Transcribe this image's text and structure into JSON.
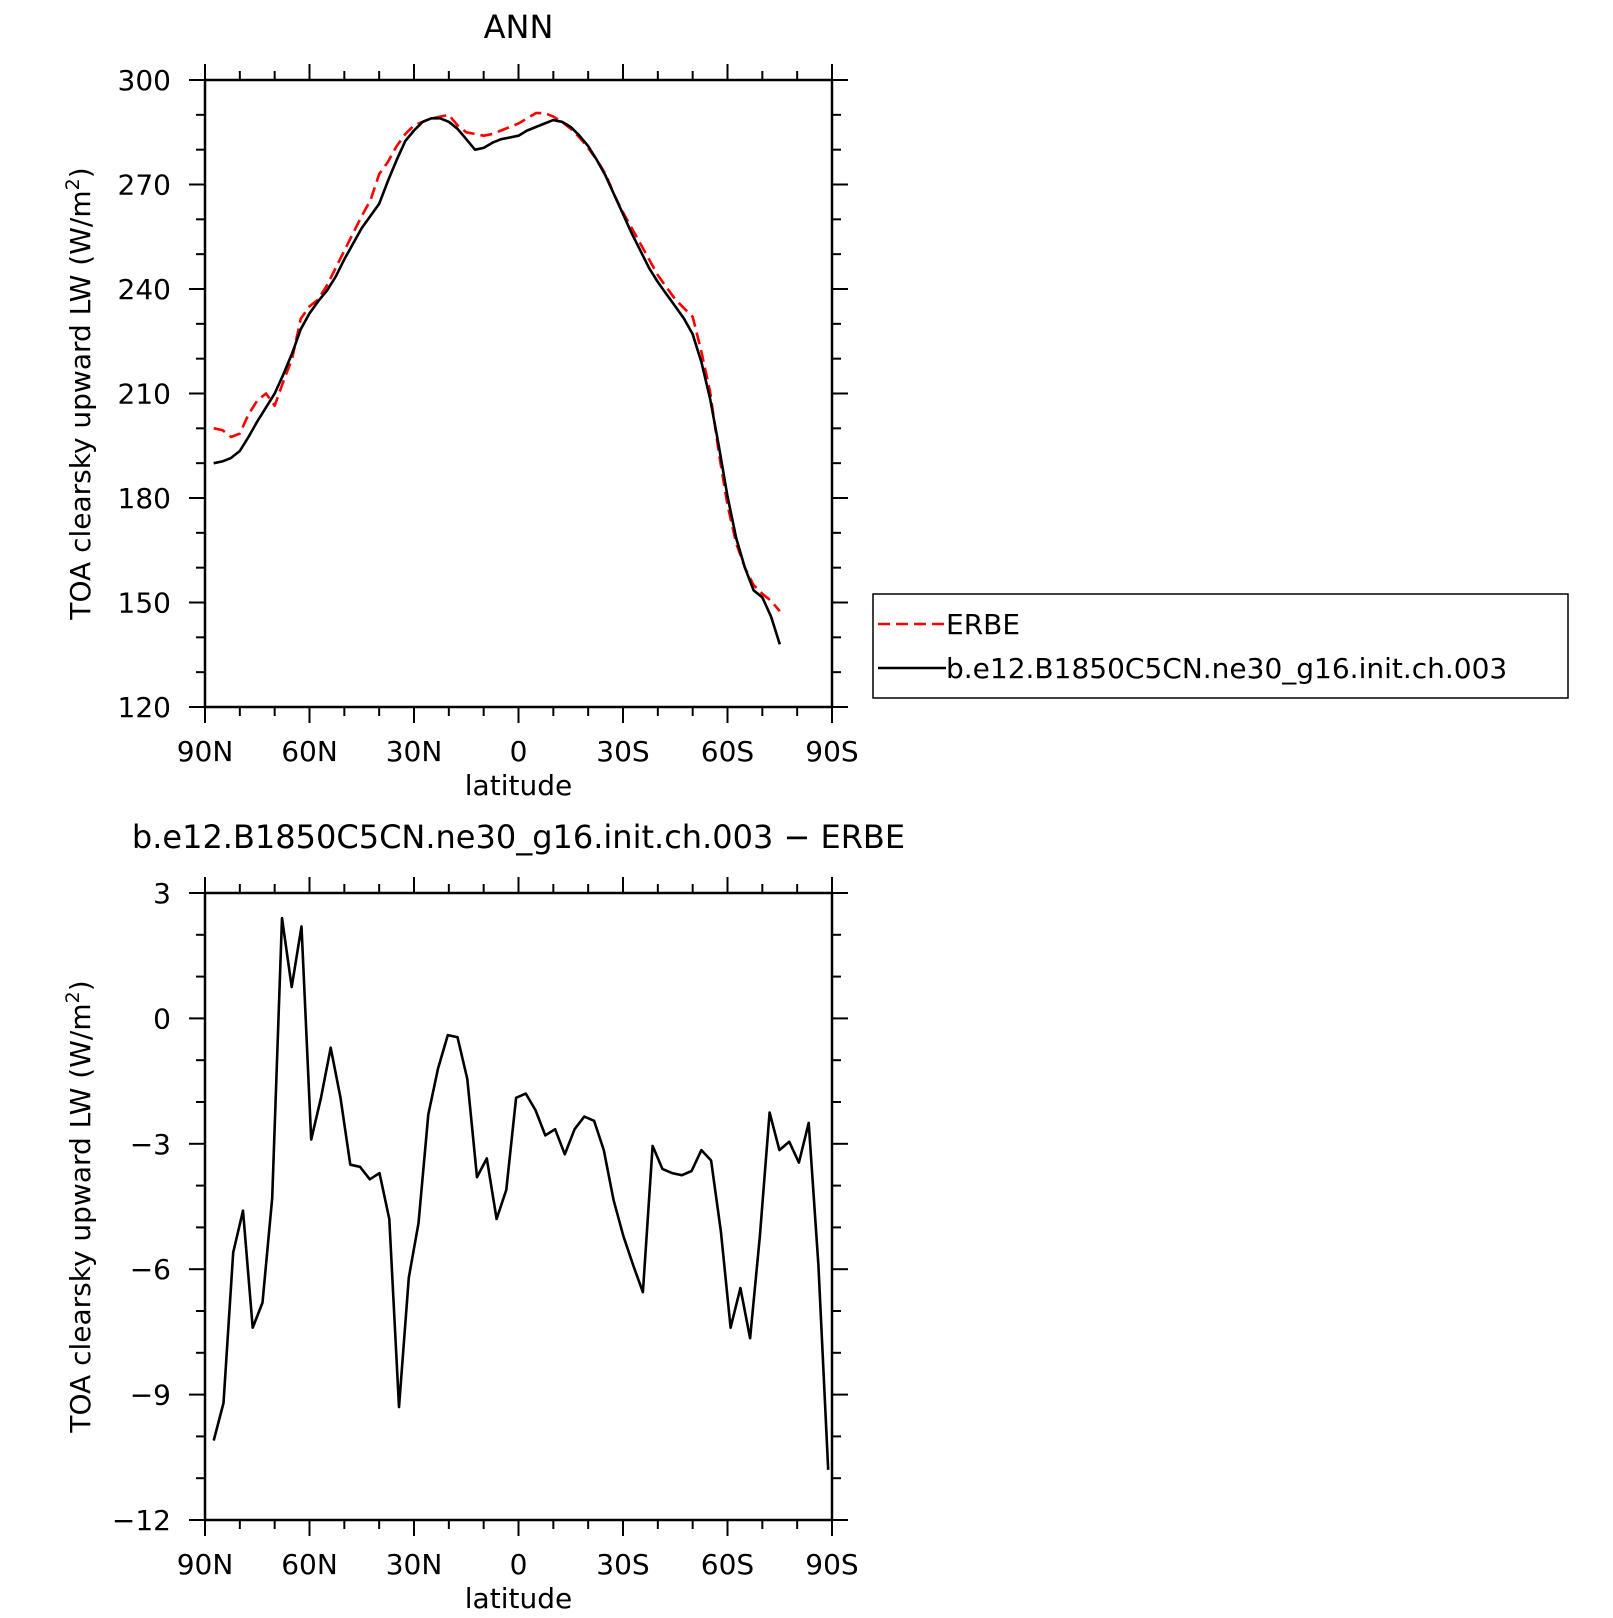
{
  "chart_data": [
    {
      "type": "line",
      "title": "ANN",
      "xlabel": "latitude",
      "ylabel_main": "TOA clearsky upward LW (W/m",
      "ylabel_sup": "2",
      "ylabel_close": ")",
      "xlim": [
        90,
        -90
      ],
      "ylim": [
        120,
        300
      ],
      "x_ticks": [
        {
          "value": 90,
          "label": "90N"
        },
        {
          "value": 60,
          "label": "60N"
        },
        {
          "value": 30,
          "label": "30N"
        },
        {
          "value": 0,
          "label": "0"
        },
        {
          "value": -30,
          "label": "30S"
        },
        {
          "value": -60,
          "label": "60S"
        },
        {
          "value": -90,
          "label": "90S"
        }
      ],
      "y_ticks": [
        {
          "value": 120,
          "label": "120"
        },
        {
          "value": 150,
          "label": "150"
        },
        {
          "value": 180,
          "label": "180"
        },
        {
          "value": 210,
          "label": "210"
        },
        {
          "value": 240,
          "label": "240"
        },
        {
          "value": 270,
          "label": "270"
        },
        {
          "value": 300,
          "label": "300"
        }
      ],
      "legend_position": "right",
      "series": [
        {
          "name": "ERBE",
          "color": "#ff0000",
          "dash": "dashed",
          "points": [
            [
              87.5,
              200
            ],
            [
              85,
              199.5
            ],
            [
              82.5,
              197.5
            ],
            [
              80,
              198.5
            ],
            [
              77.5,
              204
            ],
            [
              75,
              208
            ],
            [
              72.5,
              210
            ],
            [
              70,
              206.5
            ],
            [
              67.5,
              213.5
            ],
            [
              65,
              220
            ],
            [
              62.5,
              231.5
            ],
            [
              60,
              235
            ],
            [
              57.5,
              237
            ],
            [
              55,
              241
            ],
            [
              52.5,
              246
            ],
            [
              50,
              251
            ],
            [
              47.5,
              256
            ],
            [
              45,
              261
            ],
            [
              42.5,
              265.5
            ],
            [
              40,
              273
            ],
            [
              37.5,
              276.5
            ],
            [
              35,
              281
            ],
            [
              32.5,
              284.5
            ],
            [
              30,
              287
            ],
            [
              27.5,
              288
            ],
            [
              25,
              289
            ],
            [
              22.5,
              289.5
            ],
            [
              20,
              290
            ],
            [
              17.5,
              287
            ],
            [
              15,
              285
            ],
            [
              12.5,
              284.5
            ],
            [
              10,
              284
            ],
            [
              7.5,
              284.5
            ],
            [
              5,
              285.5
            ],
            [
              2.5,
              286.5
            ],
            [
              0,
              287.5
            ],
            [
              -2.5,
              289
            ],
            [
              -5,
              290.5
            ],
            [
              -7.5,
              290.5
            ],
            [
              -10,
              289.5
            ],
            [
              -12.5,
              288
            ],
            [
              -15,
              286
            ],
            [
              -17.5,
              283.5
            ],
            [
              -20,
              280.5
            ],
            [
              -22.5,
              277
            ],
            [
              -25,
              273
            ],
            [
              -27.5,
              267
            ],
            [
              -30,
              262
            ],
            [
              -32.5,
              257.5
            ],
            [
              -35,
              253
            ],
            [
              -37.5,
              248.5
            ],
            [
              -40,
              244
            ],
            [
              -42.5,
              240.5
            ],
            [
              -45,
              237
            ],
            [
              -47.5,
              234.5
            ],
            [
              -50,
              232
            ],
            [
              -52.5,
              222
            ],
            [
              -55,
              210.5
            ],
            [
              -57.5,
              193
            ],
            [
              -60,
              178
            ],
            [
              -62.5,
              167
            ],
            [
              -65,
              160
            ],
            [
              -67.5,
              155
            ],
            [
              -70,
              152.5
            ],
            [
              -72.5,
              150.5
            ],
            [
              -75,
              147.5
            ]
          ]
        },
        {
          "name": "b.e12.B1850C5CN.ne30_g16.init.ch.003",
          "color": "#000000",
          "dash": "solid",
          "points": [
            [
              87.5,
              190
            ],
            [
              85,
              190.5
            ],
            [
              82.5,
              191.5
            ],
            [
              80,
              193.5
            ],
            [
              77.5,
              197.5
            ],
            [
              75,
              202
            ],
            [
              72.5,
              206
            ],
            [
              70,
              210
            ],
            [
              67.5,
              215.5
            ],
            [
              65,
              221.5
            ],
            [
              62.5,
              228.5
            ],
            [
              60,
              233
            ],
            [
              57.5,
              236.5
            ],
            [
              55,
              239.5
            ],
            [
              52.5,
              243.5
            ],
            [
              50,
              248.5
            ],
            [
              47.5,
              253
            ],
            [
              45,
              257.5
            ],
            [
              42.5,
              261
            ],
            [
              40,
              264.5
            ],
            [
              37.5,
              271
            ],
            [
              35,
              277
            ],
            [
              32.5,
              282.5
            ],
            [
              30,
              285.5
            ],
            [
              27.5,
              288
            ],
            [
              25,
              289
            ],
            [
              22.5,
              289
            ],
            [
              20,
              288
            ],
            [
              17.5,
              286
            ],
            [
              15,
              283
            ],
            [
              12.5,
              280
            ],
            [
              10,
              280.5
            ],
            [
              7.5,
              282
            ],
            [
              5,
              283
            ],
            [
              2.5,
              283.5
            ],
            [
              0,
              284
            ],
            [
              -2.5,
              285.5
            ],
            [
              -5,
              286.5
            ],
            [
              -7.5,
              287.5
            ],
            [
              -10,
              288.5
            ],
            [
              -12.5,
              288
            ],
            [
              -15,
              286.5
            ],
            [
              -17.5,
              284
            ],
            [
              -20,
              281
            ],
            [
              -22.5,
              277
            ],
            [
              -25,
              272.5
            ],
            [
              -27.5,
              267
            ],
            [
              -30,
              261.5
            ],
            [
              -32.5,
              256
            ],
            [
              -35,
              251
            ],
            [
              -37.5,
              246
            ],
            [
              -40,
              242
            ],
            [
              -42.5,
              238.5
            ],
            [
              -45,
              235
            ],
            [
              -47.5,
              231.5
            ],
            [
              -50,
              227
            ],
            [
              -52.5,
              219
            ],
            [
              -55,
              208.5
            ],
            [
              -57.5,
              195
            ],
            [
              -60,
              180.5
            ],
            [
              -62.5,
              168.5
            ],
            [
              -65,
              160
            ],
            [
              -67.5,
              153.5
            ],
            [
              -70,
              151.5
            ],
            [
              -72.5,
              146
            ],
            [
              -75,
              138
            ]
          ]
        }
      ]
    },
    {
      "type": "line",
      "title": "b.e12.B1850C5CN.ne30_g16.init.ch.003 − ERBE",
      "xlabel": "latitude",
      "ylabel_main": "TOA clearsky upward LW (W/m",
      "ylabel_sup": "2",
      "ylabel_close": ")",
      "xlim": [
        90,
        -90
      ],
      "ylim": [
        -12,
        3
      ],
      "x_ticks": [
        {
          "value": 90,
          "label": "90N"
        },
        {
          "value": 60,
          "label": "60N"
        },
        {
          "value": 30,
          "label": "30N"
        },
        {
          "value": 0,
          "label": "0"
        },
        {
          "value": -30,
          "label": "30S"
        },
        {
          "value": -60,
          "label": "60S"
        },
        {
          "value": -90,
          "label": "90S"
        }
      ],
      "y_ticks": [
        {
          "value": -12,
          "label": "−12"
        },
        {
          "value": -9,
          "label": "−9"
        },
        {
          "value": -6,
          "label": "−6"
        },
        {
          "value": -3,
          "label": "−3"
        },
        {
          "value": 0,
          "label": "0"
        },
        {
          "value": 3,
          "label": "3"
        }
      ],
      "series": [
        {
          "color": "#000000",
          "dash": "solid",
          "points": [
            [
              87.5,
              -10.1
            ],
            [
              84.7,
              -9.2
            ],
            [
              81.9,
              -5.6
            ],
            [
              79.1,
              -4.6
            ],
            [
              76.3,
              -7.4
            ],
            [
              73.5,
              -6.8
            ],
            [
              70.7,
              -4.3
            ],
            [
              67.9,
              2.4
            ],
            [
              65.1,
              0.75
            ],
            [
              62.3,
              2.2
            ],
            [
              59.5,
              -2.9
            ],
            [
              56.7,
              -1.9
            ],
            [
              53.9,
              -0.7
            ],
            [
              51.1,
              -1.9
            ],
            [
              48.3,
              -3.5
            ],
            [
              45.5,
              -3.55
            ],
            [
              42.7,
              -3.85
            ],
            [
              39.9,
              -3.7
            ],
            [
              37.1,
              -4.8
            ],
            [
              34.3,
              -9.3
            ],
            [
              31.5,
              -6.2
            ],
            [
              28.7,
              -4.9
            ],
            [
              25.9,
              -2.3
            ],
            [
              23.1,
              -1.2
            ],
            [
              20.3,
              -0.4
            ],
            [
              17.5,
              -0.45
            ],
            [
              14.7,
              -1.45
            ],
            [
              11.9,
              -3.8
            ],
            [
              9.1,
              -3.35
            ],
            [
              6.3,
              -4.8
            ],
            [
              3.5,
              -4.1
            ],
            [
              0.7,
              -1.9
            ],
            [
              -2.1,
              -1.8
            ],
            [
              -4.9,
              -2.2
            ],
            [
              -7.7,
              -2.8
            ],
            [
              -10.5,
              -2.65
            ],
            [
              -13.3,
              -3.25
            ],
            [
              -16.1,
              -2.65
            ],
            [
              -18.9,
              -2.35
            ],
            [
              -21.7,
              -2.45
            ],
            [
              -24.5,
              -3.15
            ],
            [
              -27.3,
              -4.35
            ],
            [
              -30.1,
              -5.2
            ],
            [
              -32.9,
              -5.9
            ],
            [
              -35.7,
              -6.55
            ],
            [
              -38.5,
              -3.05
            ],
            [
              -41.3,
              -3.6
            ],
            [
              -44.1,
              -3.7
            ],
            [
              -46.9,
              -3.75
            ],
            [
              -49.7,
              -3.65
            ],
            [
              -52.5,
              -3.15
            ],
            [
              -55.3,
              -3.4
            ],
            [
              -58.1,
              -5.1
            ],
            [
              -60.9,
              -7.4
            ],
            [
              -63.7,
              -6.45
            ],
            [
              -66.5,
              -7.65
            ],
            [
              -69.3,
              -5.2
            ],
            [
              -72.1,
              -2.25
            ],
            [
              -74.9,
              -3.15
            ],
            [
              -77.7,
              -2.95
            ],
            [
              -80.5,
              -3.45
            ],
            [
              -83.3,
              -2.5
            ],
            [
              -86.1,
              -5.9
            ],
            [
              -88.9,
              -10.8
            ]
          ]
        }
      ]
    }
  ]
}
